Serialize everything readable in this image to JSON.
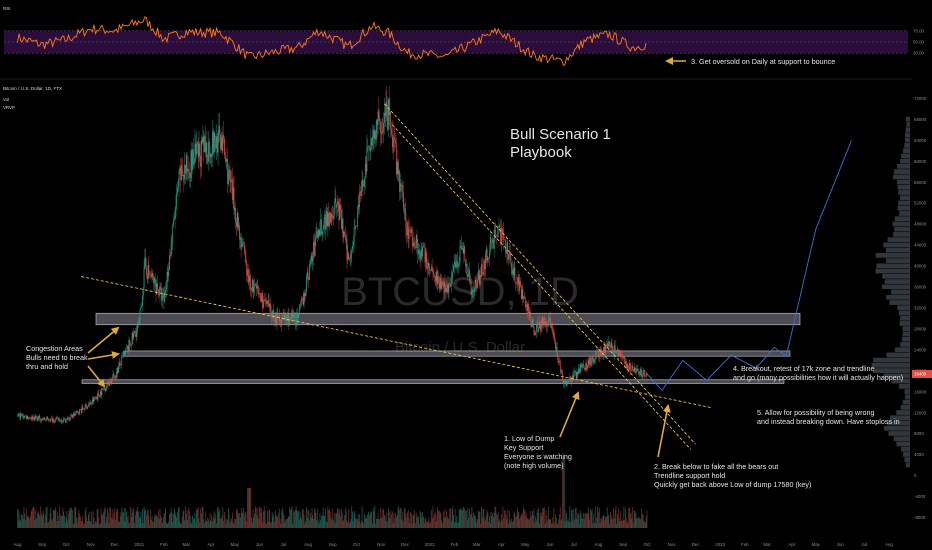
{
  "chart_data": {
    "type": "line",
    "symbol_header": "Bitcoin / U.S. Dollar, 1D, FTX",
    "indicators": [
      "Vol",
      "VRVP"
    ],
    "rsi_panel_label": "RSI",
    "rsi_levels": [
      70,
      50,
      30
    ],
    "watermark": {
      "symbol": "BTCUSD, 1D",
      "name": "Bitcoin / U.S. Dollar"
    },
    "title": "Bull Scenario 1\nPlaybook",
    "price_axis_ticks": [
      72000,
      68000,
      64000,
      60000,
      56000,
      52000,
      48000,
      44000,
      40000,
      36000,
      32000,
      28000,
      24000,
      20000,
      16000,
      12000,
      8000,
      4000,
      0,
      -4000,
      -8000
    ],
    "time_axis_ticks": [
      "Aug",
      "Sep",
      "Oct",
      "Nov",
      "Dec",
      "2021",
      "Feb",
      "Mar",
      "Apr",
      "May",
      "Jun",
      "Jul",
      "Aug",
      "Sep",
      "Oct",
      "Nov",
      "Dec",
      "2022",
      "Feb",
      "Mar",
      "Apr",
      "May",
      "Jun",
      "Jul",
      "Aug",
      "Sep",
      "Oct",
      "Nov",
      "Dec",
      "2023",
      "Feb",
      "Mar",
      "Apr",
      "May",
      "Jun",
      "Jul",
      "Aug"
    ],
    "price_series": {
      "name": "BTCUSD",
      "points": [
        [
          "2020-08-01",
          11500
        ],
        [
          "2020-09-01",
          10800
        ],
        [
          "2020-10-01",
          10600
        ],
        [
          "2020-11-01",
          13800
        ],
        [
          "2020-12-01",
          19000
        ],
        [
          "2021-01-01",
          29000
        ],
        [
          "2021-01-08",
          40000
        ],
        [
          "2021-02-01",
          33500
        ],
        [
          "2021-02-21",
          57000
        ],
        [
          "2021-03-13",
          61000
        ],
        [
          "2021-04-14",
          64500
        ],
        [
          "2021-05-19",
          37000
        ],
        [
          "2021-06-22",
          30000
        ],
        [
          "2021-07-20",
          30000
        ],
        [
          "2021-08-14",
          47000
        ],
        [
          "2021-09-07",
          52000
        ],
        [
          "2021-09-21",
          41000
        ],
        [
          "2021-10-20",
          65000
        ],
        [
          "2021-11-10",
          69000
        ],
        [
          "2021-12-04",
          47000
        ],
        [
          "2022-01-22",
          35000
        ],
        [
          "2022-02-10",
          44000
        ],
        [
          "2022-02-24",
          35000
        ],
        [
          "2022-03-28",
          47500
        ],
        [
          "2022-05-12",
          28000
        ],
        [
          "2022-06-01",
          30000
        ],
        [
          "2022-06-18",
          17580
        ],
        [
          "2022-07-01",
          19000
        ],
        [
          "2022-08-14",
          25000
        ],
        [
          "2022-09-13",
          20000
        ],
        [
          "2022-10-01",
          19400
        ]
      ]
    },
    "projection_series": {
      "name": "Projection",
      "points": [
        [
          "2022-10-01",
          19400
        ],
        [
          "2022-10-20",
          16300
        ],
        [
          "2022-11-15",
          22000
        ],
        [
          "2022-12-15",
          18200
        ],
        [
          "2023-01-15",
          23000
        ],
        [
          "2023-02-15",
          20500
        ],
        [
          "2023-03-10",
          24500
        ],
        [
          "2023-03-25",
          22800
        ],
        [
          "2023-05-01",
          47000
        ],
        [
          "2023-06-15",
          64000
        ]
      ]
    },
    "rsi_series": {
      "name": "RSI",
      "points": [
        [
          "2020-08-01",
          58
        ],
        [
          "2020-09-01",
          45
        ],
        [
          "2020-10-01",
          54
        ],
        [
          "2020-11-01",
          74
        ],
        [
          "2020-12-01",
          70
        ],
        [
          "2021-01-08",
          90
        ],
        [
          "2021-02-01",
          55
        ],
        [
          "2021-03-01",
          68
        ],
        [
          "2021-04-14",
          66
        ],
        [
          "2021-05-19",
          22
        ],
        [
          "2021-06-22",
          33
        ],
        [
          "2021-07-20",
          40
        ],
        [
          "2021-08-14",
          70
        ],
        [
          "2021-09-21",
          42
        ],
        [
          "2021-10-20",
          78
        ],
        [
          "2021-11-10",
          66
        ],
        [
          "2021-12-04",
          30
        ],
        [
          "2022-01-22",
          24
        ],
        [
          "2022-03-28",
          70
        ],
        [
          "2022-05-12",
          25
        ],
        [
          "2022-06-18",
          15
        ],
        [
          "2022-07-15",
          52
        ],
        [
          "2022-08-14",
          64
        ],
        [
          "2022-09-13",
          40
        ],
        [
          "2022-10-01",
          46
        ]
      ]
    },
    "zones": [
      {
        "name": "Congestion zone high",
        "low": 28800,
        "high": 31000
      },
      {
        "name": "Congestion zone mid",
        "low": 22800,
        "high": 23800
      },
      {
        "name": "Congestion zone low",
        "low": 17580,
        "high": 18300
      }
    ],
    "trendlines": [
      {
        "name": "Rising support",
        "from": [
          "2020-10-20",
          38000
        ],
        "to": [
          "2022-12-20",
          13000
        ]
      },
      {
        "name": "Falling resistance outer",
        "from": [
          "2021-11-05",
          71000
        ],
        "to": [
          "2022-12-01",
          6000
        ]
      },
      {
        "name": "Falling resistance inner",
        "from": [
          "2021-11-15",
          67000
        ],
        "to": [
          "2022-11-25",
          5000
        ]
      }
    ],
    "annotations": [
      {
        "name": "congestion",
        "lines": [
          "Congestion Areas",
          "Bulls need to break",
          "thru and hold"
        ]
      },
      {
        "name": "low-of-dump",
        "lines": [
          "1. Low of Dump",
          "Key Support",
          "Everyone is watching",
          "(note high volume)"
        ]
      },
      {
        "name": "break-below",
        "lines": [
          "2. Break below to fake all the bears out",
          "Trendline support hold",
          "Quickly get back above Low of dump 17580 (key)"
        ]
      },
      {
        "name": "oversold",
        "lines": [
          "3. Get oversold on Daily at support to bounce"
        ]
      },
      {
        "name": "breakout",
        "lines": [
          "4. Breakout, retest of 17k zone and trendline",
          "and go (many possibilities how it will actually happen)"
        ]
      },
      {
        "name": "breakdown",
        "lines": [
          "5. Allow for possibility of being wrong",
          "and instead breaking down. Have stoploss in"
        ]
      }
    ],
    "colors": {
      "candle_up": "#2ea88f",
      "candle_down": "#e0514a",
      "rsi_line": "#ff7a1a",
      "rsi_band": "#2a0d3a",
      "zone_fill": "#8a8a96",
      "trendline": "#ffd24a",
      "projection": "#3d6fd6",
      "arrow": "#e0a93b",
      "price_badge": "#e0514a"
    }
  }
}
